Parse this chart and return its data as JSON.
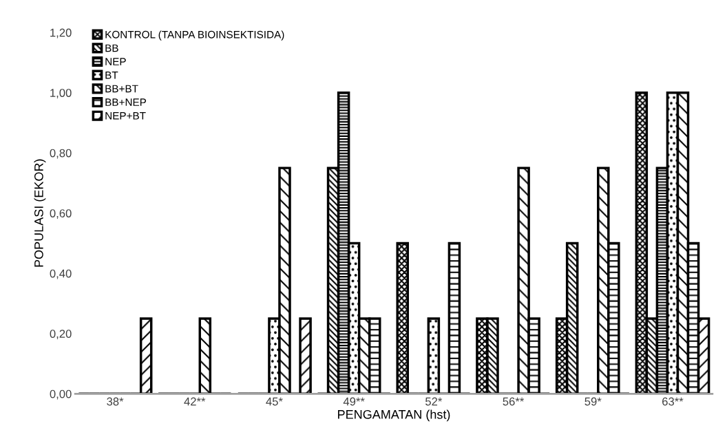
{
  "chart_data": {
    "type": "bar",
    "xlabel": "PENGAMATAN (hst)",
    "ylabel": "POPULASI (EKOR)",
    "categories": [
      "38*",
      "42**",
      "45*",
      "49**",
      "52*",
      "56**",
      "59*",
      "63**"
    ],
    "series": [
      {
        "name": "KONTROL (TANPA BIOINSEKTISIDA)",
        "color": "#000000",
        "values": [
          0,
          0,
          0,
          0,
          0.5,
          0.25,
          0.25,
          1
        ]
      },
      {
        "name": "BB",
        "color": "#000000",
        "values": [
          0,
          0,
          0,
          0.75,
          0,
          0.25,
          0.5,
          0.25
        ]
      },
      {
        "name": "NEP",
        "color": "#000000",
        "values": [
          0,
          0,
          0,
          1,
          0,
          0,
          0,
          0.75
        ]
      },
      {
        "name": "BT",
        "color": "#000000",
        "values": [
          0,
          0,
          0.25,
          0.5,
          0.25,
          0,
          0,
          1
        ]
      },
      {
        "name": "BB+BT",
        "color": "#000000",
        "values": [
          0,
          0.25,
          0.75,
          0.25,
          0,
          0.75,
          0.75,
          1
        ]
      },
      {
        "name": "BB+NEP",
        "color": "#000000",
        "values": [
          0,
          0,
          0,
          0.25,
          0.5,
          0.25,
          0.5,
          0.5
        ]
      },
      {
        "name": "NEP+BT",
        "color": "#000000",
        "values": [
          0.25,
          0,
          0.25,
          0,
          0,
          0,
          0,
          0.25
        ]
      }
    ],
    "ylim": [
      0,
      1.2
    ],
    "yticks": [
      {
        "value": 0,
        "label": "0,00"
      },
      {
        "value": 0.2,
        "label": "0,20"
      },
      {
        "value": 0.4,
        "label": "0,40"
      },
      {
        "value": 0.6,
        "label": "0,60"
      },
      {
        "value": 0.8,
        "label": "0,80"
      },
      {
        "value": 1.0,
        "label": "1,00"
      },
      {
        "value": 1.2,
        "label": "1,20"
      }
    ],
    "grid": false,
    "legend": "top left"
  }
}
